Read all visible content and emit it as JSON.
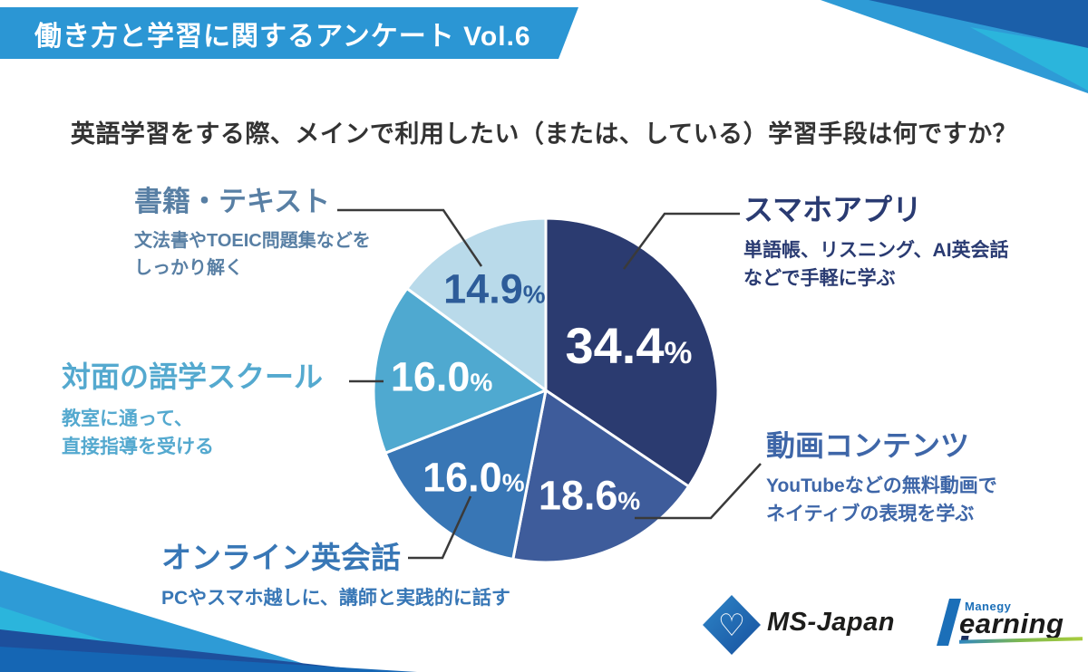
{
  "header": {
    "title": "働き方と学習に関するアンケート Vol.6"
  },
  "question": "英語学習をする際、メインで利用したい（または、している）学習手段は何ですか？",
  "chart_data": {
    "type": "pie",
    "title": "英語学習をする際、メインで利用したい（または、している）学習手段",
    "start_angle_deg": 0,
    "direction": "clockwise",
    "legend_position": "callouts-around-pie",
    "slices": [
      {
        "label": "スマホアプリ",
        "value": 34.4,
        "display": "34.4%",
        "color": "#2B3B70",
        "pct_color": "#FFFFFF"
      },
      {
        "label": "動画コンテンツ",
        "value": 18.6,
        "display": "18.6%",
        "color": "#3E5C9B",
        "pct_color": "#FFFFFF"
      },
      {
        "label": "オンライン英会話",
        "value": 16.0,
        "display": "16.0%",
        "color": "#3876B5",
        "pct_color": "#FFFFFF"
      },
      {
        "label": "対面の語学スクール",
        "value": 16.0,
        "display": "16.0%",
        "color": "#4FA9D0",
        "pct_color": "#FFFFFF"
      },
      {
        "label": "書籍・テキスト",
        "value": 14.9,
        "display": "14.9%",
        "color": "#B9DAEA",
        "pct_color": "#2D5C99"
      }
    ]
  },
  "callouts": [
    {
      "title": "書籍・テキスト",
      "desc": [
        "文法書やTOEIC問題集などを",
        "しっかり解く"
      ],
      "color": "#587FA4"
    },
    {
      "title": "スマホアプリ",
      "desc": [
        "単語帳、リスニング、AI英会話",
        "などで手軽に学ぶ"
      ],
      "color": "#2A3B72"
    },
    {
      "title": "対面の語学スクール",
      "desc": [
        "教室に通って、",
        "直接指導を受ける"
      ],
      "color": "#54A9CF"
    },
    {
      "title": "オンライン英会話",
      "desc": [
        "PCやスマホ越しに、講師と実践的に話す"
      ],
      "color": "#3877B6"
    },
    {
      "title": "動画コンテンツ",
      "desc": [
        "YouTubeなどの無料動画で",
        "ネイティブの表現を学ぶ"
      ],
      "color": "#3E66A8"
    }
  ],
  "logos": {
    "ms_japan": "MS-Japan",
    "manegy_small": "Manegy",
    "manegy_main": "earning"
  },
  "palette": {
    "banner_blue": "#2B96D4",
    "question_text": "#333333",
    "connector_line": "#3A3A3A",
    "decor_light_blue": "#2E9BD6",
    "decor_cyan": "#2BB5DC",
    "decor_navy": "#1D4F9C",
    "decor_royal": "#1566B4"
  }
}
